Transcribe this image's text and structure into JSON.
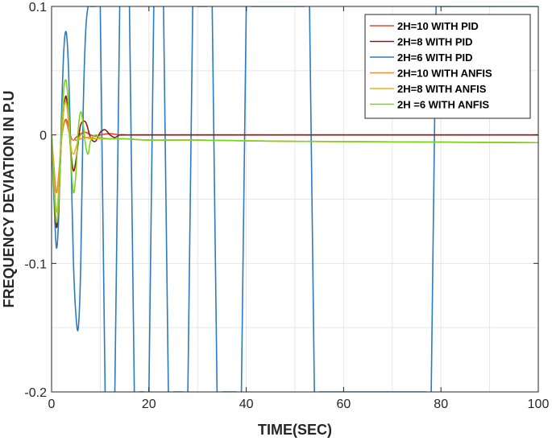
{
  "chart_data": {
    "type": "line",
    "title": "",
    "xlabel": "TIME(SEC)",
    "ylabel": "FREQUENCY DEVIATION IN P.U",
    "xlim": [
      0,
      100
    ],
    "ylim": [
      -0.2,
      0.1
    ],
    "xticks": [
      0,
      20,
      40,
      60,
      80,
      100
    ],
    "yticks": [
      -0.2,
      -0.1,
      0,
      0.1
    ],
    "xtick_labels": [
      "0",
      "20",
      "40",
      "60",
      "80",
      "100"
    ],
    "ytick_labels": [
      "-0.2",
      "-0.1",
      "0",
      "0.1"
    ],
    "grid": true,
    "legend_position": "top-right",
    "series": [
      {
        "name": "2H=10 WITH PID",
        "color": "#d94a2b",
        "x": [
          0,
          0.5,
          1,
          1.5,
          2,
          2.5,
          3,
          3.5,
          4,
          4.5,
          5,
          6,
          7,
          8,
          9,
          10,
          12,
          14,
          16,
          20,
          30,
          50,
          100
        ],
        "y": [
          0,
          -0.03,
          -0.045,
          -0.03,
          -0.005,
          0.008,
          0.012,
          0.006,
          -0.002,
          -0.004,
          -0.002,
          0.001,
          0.002,
          0.0,
          -0.001,
          0.0,
          0.001,
          0.0,
          0.0,
          0.0,
          0.0,
          0.0,
          0.0
        ]
      },
      {
        "name": "2H=8 WITH PID",
        "color": "#8b1a1a",
        "x": [
          0,
          0.5,
          1,
          1.5,
          2,
          2.5,
          3,
          3.5,
          4,
          4.5,
          5,
          5.5,
          6,
          7,
          8,
          9,
          10,
          11,
          12,
          13,
          14,
          16,
          20,
          30,
          50,
          100
        ],
        "y": [
          0,
          -0.04,
          -0.072,
          -0.05,
          -0.005,
          0.02,
          0.03,
          0.01,
          -0.015,
          -0.028,
          -0.02,
          -0.005,
          0.008,
          0.01,
          -0.002,
          -0.005,
          0.002,
          0.004,
          0.0,
          -0.002,
          0.0,
          0.0,
          0.0,
          0.0,
          0.0,
          0.0
        ]
      },
      {
        "name": "2H=6 WITH PID",
        "color": "#2b7bbf",
        "x": [
          0,
          0.5,
          1,
          1.5,
          2,
          2.5,
          3,
          3.5,
          4,
          4.5,
          5,
          5.5,
          6,
          6.5,
          7,
          7.5,
          8,
          9,
          10,
          11,
          12,
          13,
          14,
          15,
          16,
          17,
          18,
          19,
          20,
          21,
          22,
          23,
          24,
          25,
          26,
          27,
          28,
          29,
          30,
          31,
          32,
          33,
          34,
          35,
          36,
          37,
          38,
          39,
          40,
          41,
          42,
          43,
          44,
          45,
          46,
          47,
          48,
          49,
          50,
          51,
          52,
          53,
          54,
          55,
          56,
          57,
          58,
          59,
          60,
          61,
          62,
          63,
          64,
          65,
          66,
          67,
          68,
          69,
          70,
          71,
          72,
          73,
          74,
          75,
          76,
          77,
          78,
          79,
          80,
          100
        ],
        "y": [
          0,
          -0.05,
          -0.088,
          -0.06,
          0.01,
          0.065,
          0.08,
          0.05,
          -0.02,
          -0.1,
          -0.14,
          -0.15,
          -0.1,
          0.02,
          0.08,
          0.1,
          0.1,
          0.1,
          0.1,
          -0.2,
          -0.2,
          -0.2,
          0.1,
          0.1,
          0.1,
          -0.2,
          -0.2,
          -0.2,
          -0.2,
          0.1,
          0.1,
          0.1,
          -0.2,
          -0.2,
          -0.2,
          -0.2,
          -0.2,
          0.1,
          0.1,
          0.1,
          0.1,
          0.1,
          -0.2,
          -0.2,
          -0.2,
          -0.2,
          -0.2,
          -0.2,
          0.1,
          0.1,
          0.1,
          0.1,
          0.1,
          0.1,
          0.1,
          0.1,
          0.1,
          0.1,
          0.1,
          0.1,
          0.1,
          0.1,
          -0.2,
          -0.2,
          -0.2,
          -0.2,
          -0.2,
          -0.2,
          -0.2,
          -0.2,
          -0.2,
          -0.2,
          -0.2,
          -0.2,
          -0.2,
          -0.2,
          -0.2,
          -0.2,
          -0.2,
          -0.2,
          -0.2,
          -0.2,
          -0.2,
          -0.2,
          -0.2,
          -0.2,
          -0.2,
          0.1,
          0.1,
          0.1
        ]
      },
      {
        "name": "2H=10 WITH ANFIS",
        "color": "#f08c3c",
        "x": [
          0,
          0.5,
          1,
          1.5,
          2,
          2.5,
          3,
          3.5,
          4,
          5,
          6,
          7,
          8,
          10,
          15,
          20,
          30,
          50,
          100
        ],
        "y": [
          0,
          -0.025,
          -0.045,
          -0.03,
          -0.005,
          0.008,
          0.01,
          0.003,
          -0.003,
          -0.004,
          -0.003,
          -0.002,
          -0.002,
          -0.003,
          -0.003,
          -0.004,
          -0.004,
          -0.005,
          -0.006
        ]
      },
      {
        "name": "2H=8 WITH ANFIS",
        "color": "#e8b21e",
        "x": [
          0,
          0.5,
          1,
          1.5,
          2,
          2.5,
          3,
          3.5,
          4,
          4.5,
          5,
          6,
          7,
          8,
          10,
          15,
          20,
          30,
          50,
          100
        ],
        "y": [
          0,
          -0.035,
          -0.06,
          -0.04,
          -0.005,
          0.02,
          0.025,
          0.01,
          -0.01,
          -0.015,
          -0.01,
          0.0,
          -0.002,
          -0.003,
          -0.003,
          -0.003,
          -0.004,
          -0.004,
          -0.005,
          -0.006
        ]
      },
      {
        "name": "2H =6 WITH ANFIS",
        "color": "#7ed321",
        "x": [
          0,
          0.5,
          1,
          1.5,
          2,
          2.5,
          3,
          3.5,
          4,
          4.5,
          5,
          5.5,
          6,
          6.5,
          7,
          7.5,
          8,
          9,
          10,
          12,
          15,
          20,
          30,
          50,
          100
        ],
        "y": [
          0,
          -0.04,
          -0.068,
          -0.05,
          0.0,
          0.035,
          0.042,
          0.02,
          -0.02,
          -0.045,
          -0.03,
          0.005,
          0.018,
          0.008,
          -0.008,
          -0.015,
          -0.005,
          0.0,
          -0.002,
          -0.003,
          -0.003,
          -0.004,
          -0.004,
          -0.005,
          -0.006
        ]
      }
    ]
  }
}
